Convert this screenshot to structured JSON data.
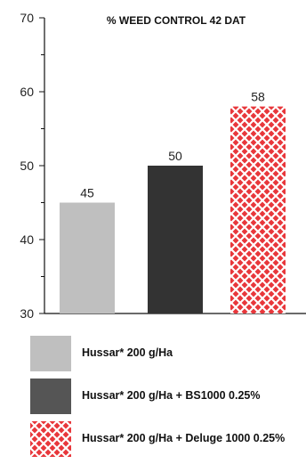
{
  "chart_data": {
    "type": "bar",
    "title": "% WEED CONTROL  42 DAT",
    "categories": [
      "Hussar* 200 g/Ha",
      "Hussar* 200 g/Ha + BS1000 0.25%",
      "Hussar* 200 g/Ha + Deluge 1000 0.25%"
    ],
    "values": [
      45,
      50,
      58
    ],
    "value_labels": [
      "45",
      "50",
      "58"
    ],
    "ylim": [
      30,
      70
    ],
    "yticks": [
      30,
      40,
      50,
      60,
      70
    ],
    "ytick_labels": [
      "30",
      "40",
      "50",
      "60",
      "70"
    ],
    "minor_ticks": [
      35,
      45,
      55,
      65
    ],
    "grid": false,
    "legend_position": "bottom",
    "colors": [
      "#bfbfbf",
      "#333333",
      "#e8373b"
    ],
    "patterns": [
      "solid",
      "solid",
      "crosshatch-white-on-red"
    ],
    "xlabel": "",
    "ylabel": ""
  },
  "legend": [
    {
      "label": "Hussar* 200 g/Ha",
      "color": "#bfbfbf",
      "pattern": "solid"
    },
    {
      "label": "Hussar* 200 g/Ha + BS1000 0.25%",
      "color": "#555555",
      "pattern": "solid"
    },
    {
      "label": "Hussar* 200 g/Ha + Deluge 1000 0.25%",
      "color": "#e8373b",
      "pattern": "crosshatch"
    }
  ]
}
